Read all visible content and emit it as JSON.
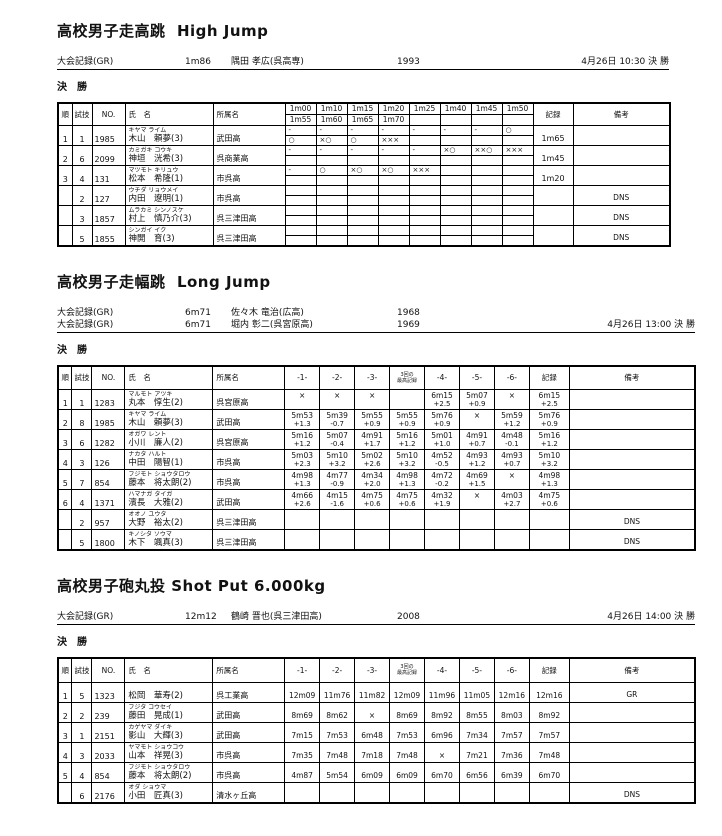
{
  "sections": [
    {
      "id": "high-jump",
      "title": "高校男子走高跳  High Jump",
      "records": [
        {
          "label": "大会記録(GR)",
          "mark": "1m86",
          "holder": "隅田 孝広(呉高専)",
          "year": "1993",
          "schedule": "4月26日 10:30 決 勝"
        }
      ],
      "round_label": "決　勝",
      "table_type": "heights",
      "columns": {
        "rank": "順",
        "order": "試技",
        "no": "NO.",
        "name": "氏　名",
        "team": "所属名",
        "record": "記録",
        "note": "備考",
        "height_pairs": [
          [
            "1m00",
            "1m55"
          ],
          [
            "1m10",
            "1m60"
          ],
          [
            "1m15",
            "1m65"
          ],
          [
            "1m20",
            "1m70"
          ],
          [
            "1m25",
            ""
          ],
          [
            "1m40",
            ""
          ],
          [
            "1m45",
            ""
          ],
          [
            "1m50",
            ""
          ]
        ]
      },
      "rows": [
        {
          "rank": "1",
          "order": "1",
          "no": "1985",
          "kana": "キヤマ ライム",
          "name": "木山　頼夢(3)",
          "team": "武田高",
          "marks_top": [
            "-",
            "-",
            "-",
            "-",
            "-",
            "-",
            "-",
            "○"
          ],
          "marks_bottom": [
            "○",
            "×○",
            "○",
            "×××",
            "",
            "",
            "",
            ""
          ],
          "record": "1m65",
          "note": ""
        },
        {
          "rank": "2",
          "order": "6",
          "no": "2099",
          "kana": "カミガキ コウキ",
          "name": "神垣　洸希(3)",
          "team": "呉商業高",
          "marks_top": [
            "-",
            "-",
            "-",
            "-",
            "-",
            "×○",
            "××○",
            "×××"
          ],
          "marks_bottom": [
            "",
            "",
            "",
            "",
            "",
            "",
            "",
            ""
          ],
          "record": "1m45",
          "note": ""
        },
        {
          "rank": "3",
          "order": "4",
          "no": "131",
          "kana": "マツモト キリュウ",
          "name": "松本　希隆(1)",
          "team": "市呉高",
          "marks_top": [
            "-",
            "○",
            "×○",
            "×○",
            "×××",
            "",
            "",
            ""
          ],
          "marks_bottom": [
            "",
            "",
            "",
            "",
            "",
            "",
            "",
            ""
          ],
          "record": "1m20",
          "note": ""
        },
        {
          "rank": "",
          "order": "2",
          "no": "127",
          "kana": "ウチダ リョウメイ",
          "name": "内田　遼明(1)",
          "team": "市呉高",
          "marks_top": [
            "",
            "",
            "",
            "",
            "",
            "",
            "",
            ""
          ],
          "marks_bottom": [
            "",
            "",
            "",
            "",
            "",
            "",
            "",
            ""
          ],
          "record": "",
          "note": "DNS"
        },
        {
          "rank": "",
          "order": "3",
          "no": "1857",
          "kana": "ムラカミ シンノスケ",
          "name": "村上　慎乃介(3)",
          "team": "呉三津田高",
          "marks_top": [
            "",
            "",
            "",
            "",
            "",
            "",
            "",
            ""
          ],
          "marks_bottom": [
            "",
            "",
            "",
            "",
            "",
            "",
            "",
            ""
          ],
          "record": "",
          "note": "DNS"
        },
        {
          "rank": "",
          "order": "5",
          "no": "1855",
          "kana": "シンガイ イク",
          "name": "神開　育(3)",
          "team": "呉三津田高",
          "marks_top": [
            "",
            "",
            "",
            "",
            "",
            "",
            "",
            ""
          ],
          "marks_bottom": [
            "",
            "",
            "",
            "",
            "",
            "",
            "",
            ""
          ],
          "record": "",
          "note": "DNS"
        }
      ]
    },
    {
      "id": "long-jump",
      "title": "高校男子走幅跳  Long Jump",
      "records": [
        {
          "label": "大会記録(GR)",
          "mark": "6m71",
          "holder": "佐々木 竜治(広高)",
          "year": "1968",
          "schedule": ""
        },
        {
          "label": "大会記録(GR)",
          "mark": "6m71",
          "holder": "堀内 彰二(呉宮原高)",
          "year": "1969",
          "schedule": "4月26日 13:00 決 勝"
        }
      ],
      "round_label": "決　勝",
      "table_type": "attempts-wind",
      "columns": {
        "rank": "順",
        "order": "試技",
        "no": "NO.",
        "name": "氏　名",
        "team": "所属名",
        "record": "記録",
        "note": "備考",
        "attempts": [
          [
            "-1-"
          ],
          [
            "-2-"
          ],
          [
            "-3-"
          ],
          [
            "3回の",
            "最高記録"
          ],
          [
            "-4-"
          ],
          [
            "-5-"
          ],
          [
            "-6-"
          ]
        ]
      },
      "rows": [
        {
          "rank": "1",
          "order": "1",
          "no": "1283",
          "kana": "マルモト アツキ",
          "name": "丸本　惇生(2)",
          "team": "呉宮原高",
          "marks": [
            [
              "×",
              ""
            ],
            [
              "×",
              ""
            ],
            [
              "×",
              ""
            ],
            [
              "",
              ""
            ],
            [
              "6m15",
              "+2.5"
            ],
            [
              "5m07",
              "+0.9"
            ],
            [
              "×",
              ""
            ]
          ],
          "record": [
            "6m15",
            "+2.5"
          ],
          "note": ""
        },
        {
          "rank": "2",
          "order": "8",
          "no": "1985",
          "kana": "キヤマ ライム",
          "name": "木山　頼夢(3)",
          "team": "武田高",
          "marks": [
            [
              "5m53",
              "+1.3"
            ],
            [
              "5m39",
              "-0.7"
            ],
            [
              "5m55",
              "+0.9"
            ],
            [
              "5m55",
              "+0.9"
            ],
            [
              "5m76",
              "+0.9"
            ],
            [
              "×",
              ""
            ],
            [
              "5m59",
              "+1.2"
            ]
          ],
          "record": [
            "5m76",
            "+0.9"
          ],
          "note": ""
        },
        {
          "rank": "3",
          "order": "6",
          "no": "1282",
          "kana": "オガワ レント",
          "name": "小川　廉人(2)",
          "team": "呉宮原高",
          "marks": [
            [
              "5m16",
              "+1.2"
            ],
            [
              "5m07",
              "-0.4"
            ],
            [
              "4m91",
              "+1.7"
            ],
            [
              "5m16",
              "+1.2"
            ],
            [
              "5m01",
              "+1.0"
            ],
            [
              "4m91",
              "+0.7"
            ],
            [
              "4m48",
              "-0.1"
            ]
          ],
          "record": [
            "5m16",
            "+1.2"
          ],
          "note": ""
        },
        {
          "rank": "4",
          "order": "3",
          "no": "126",
          "kana": "ナカタ ハルト",
          "name": "中田　陽智(1)",
          "team": "市呉高",
          "marks": [
            [
              "5m03",
              "+2.3"
            ],
            [
              "5m10",
              "+3.2"
            ],
            [
              "5m02",
              "+2.6"
            ],
            [
              "5m10",
              "+3.2"
            ],
            [
              "4m52",
              "-0.5"
            ],
            [
              "4m93",
              "+1.2"
            ],
            [
              "4m93",
              "+0.7"
            ]
          ],
          "record": [
            "5m10",
            "+3.2"
          ],
          "note": ""
        },
        {
          "rank": "5",
          "order": "7",
          "no": "854",
          "kana": "フジモト ショウタロウ",
          "name": "藤本　将太朗(2)",
          "team": "市呉高",
          "marks": [
            [
              "4m98",
              "+1.3"
            ],
            [
              "4m77",
              "-0.9"
            ],
            [
              "4m34",
              "+2.0"
            ],
            [
              "4m98",
              "+1.3"
            ],
            [
              "4m72",
              "-0.2"
            ],
            [
              "4m69",
              "+1.5"
            ],
            [
              "×",
              ""
            ]
          ],
          "record": [
            "4m98",
            "+1.3"
          ],
          "note": ""
        },
        {
          "rank": "6",
          "order": "4",
          "no": "1371",
          "kana": "ハマナガ タイガ",
          "name": "濱長　大雅(2)",
          "team": "武田高",
          "marks": [
            [
              "4m66",
              "+2.6"
            ],
            [
              "4m15",
              "-1.6"
            ],
            [
              "4m75",
              "+0.6"
            ],
            [
              "4m75",
              "+0.6"
            ],
            [
              "4m32",
              "+1.9"
            ],
            [
              "×",
              ""
            ],
            [
              "4m03",
              "+2.7"
            ]
          ],
          "record": [
            "4m75",
            "+0.6"
          ],
          "note": ""
        },
        {
          "rank": "",
          "order": "2",
          "no": "957",
          "kana": "オオノ ユウタ",
          "name": "大野　裕太(2)",
          "team": "呉三津田高",
          "marks": [
            [
              "",
              ""
            ],
            [
              "",
              ""
            ],
            [
              "",
              ""
            ],
            [
              "",
              ""
            ],
            [
              "",
              ""
            ],
            [
              "",
              ""
            ],
            [
              "",
              ""
            ]
          ],
          "record": [
            "",
            ""
          ],
          "note": "DNS"
        },
        {
          "rank": "",
          "order": "5",
          "no": "1800",
          "kana": "キノシタ ソウマ",
          "name": "木下　颯真(3)",
          "team": "呉三津田高",
          "marks": [
            [
              "",
              ""
            ],
            [
              "",
              ""
            ],
            [
              "",
              ""
            ],
            [
              "",
              ""
            ],
            [
              "",
              ""
            ],
            [
              "",
              ""
            ],
            [
              "",
              ""
            ]
          ],
          "record": [
            "",
            ""
          ],
          "note": "DNS"
        }
      ]
    },
    {
      "id": "shot-put",
      "title": "高校男子砲丸投 Shot Put 6.000kg",
      "records": [
        {
          "label": "大会記録(GR)",
          "mark": "12m12",
          "holder": "鶴崎 晋也(呉三津田高)",
          "year": "2008",
          "schedule": "4月26日 14:00 決 勝"
        }
      ],
      "round_label": "決　勝",
      "table_type": "attempts",
      "columns": {
        "rank": "順",
        "order": "試技",
        "no": "NO.",
        "name": "氏　名",
        "team": "所属名",
        "record": "記録",
        "note": "備考",
        "attempts": [
          [
            "-1-"
          ],
          [
            "-2-"
          ],
          [
            "-3-"
          ],
          [
            "3回の",
            "最高記録"
          ],
          [
            "-4-"
          ],
          [
            "-5-"
          ],
          [
            "-6-"
          ]
        ]
      },
      "rows": [
        {
          "rank": "1",
          "order": "5",
          "no": "1323",
          "kana": "",
          "name": "松岡　華寿(2)",
          "team": "呉工業高",
          "marks": [
            "12m09",
            "11m76",
            "11m82",
            "12m09",
            "11m96",
            "11m05",
            "12m16"
          ],
          "record": "12m16",
          "note": "GR"
        },
        {
          "rank": "2",
          "order": "2",
          "no": "239",
          "kana": "フジタ コウセイ",
          "name": "藤田　晃成(1)",
          "team": "武田高",
          "marks": [
            "8m69",
            "8m62",
            "×",
            "8m69",
            "8m92",
            "8m55",
            "8m03"
          ],
          "record": "8m92",
          "note": ""
        },
        {
          "rank": "3",
          "order": "1",
          "no": "2151",
          "kana": "カゲヤマ ダイキ",
          "name": "影山　大輝(3)",
          "team": "武田高",
          "marks": [
            "7m15",
            "7m53",
            "6m48",
            "7m53",
            "6m96",
            "7m34",
            "7m57"
          ],
          "record": "7m57",
          "note": ""
        },
        {
          "rank": "4",
          "order": "3",
          "no": "2033",
          "kana": "ヤマモト ショウコウ",
          "name": "山本　祥晃(3)",
          "team": "市呉高",
          "marks": [
            "7m35",
            "7m48",
            "7m18",
            "7m48",
            "×",
            "7m21",
            "7m36"
          ],
          "record": "7m48",
          "note": ""
        },
        {
          "rank": "5",
          "order": "4",
          "no": "854",
          "kana": "フジモト ショウタロウ",
          "name": "藤本　将太朗(2)",
          "team": "市呉高",
          "marks": [
            "4m87",
            "5m54",
            "6m09",
            "6m09",
            "6m70",
            "6m56",
            "6m39"
          ],
          "record": "6m70",
          "note": ""
        },
        {
          "rank": "",
          "order": "6",
          "no": "2176",
          "kana": "オダ ショウマ",
          "name": "小田　匠真(3)",
          "team": "清水ヶ丘高",
          "marks": [
            "",
            "",
            "",
            "",
            "",
            "",
            ""
          ],
          "record": "",
          "note": "DNS"
        }
      ]
    }
  ]
}
